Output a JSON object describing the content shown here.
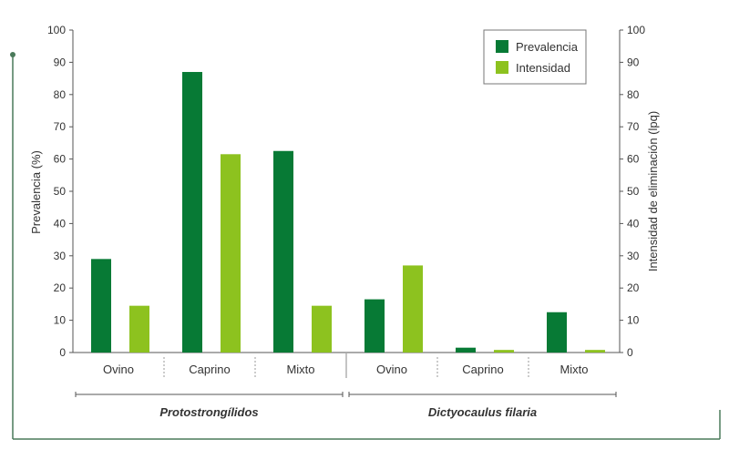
{
  "colors": {
    "prevalencia": "#077a35",
    "intensidad": "#8dc21f",
    "frame": "#4a7a5a",
    "axis": "#555555"
  },
  "chart_data": {
    "type": "bar",
    "xlabel": "",
    "ylabel": "Prevalencia (%)",
    "y2label": "Intensidad de eliminación (lpq)",
    "ylim": [
      0,
      100
    ],
    "y2lim": [
      0,
      100
    ],
    "yticks": [
      0,
      10,
      20,
      30,
      40,
      50,
      60,
      70,
      80,
      90,
      100
    ],
    "legend_position": "top-right",
    "groups": [
      {
        "label": "Protostrongílidos",
        "categories": [
          "Ovino",
          "Caprino",
          "Mixto"
        ]
      },
      {
        "label": "Dictyocaulus filaria",
        "categories": [
          "Ovino",
          "Caprino",
          "Mixto"
        ]
      }
    ],
    "series": [
      {
        "name": "Prevalencia",
        "values": [
          29,
          87,
          62.5,
          16.5,
          1.5,
          12.5
        ]
      },
      {
        "name": "Intensidad",
        "values": [
          14.5,
          61.5,
          14.5,
          27,
          0.8,
          0.8
        ]
      }
    ]
  }
}
